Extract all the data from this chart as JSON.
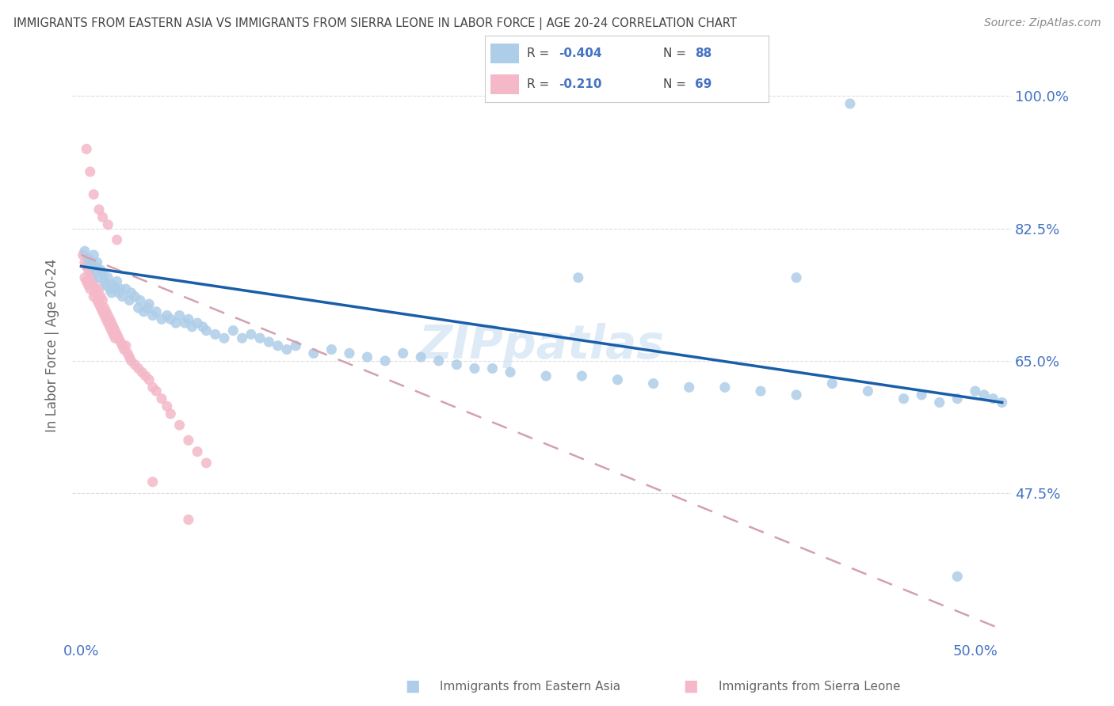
{
  "title": "IMMIGRANTS FROM EASTERN ASIA VS IMMIGRANTS FROM SIERRA LEONE IN LABOR FORCE | AGE 20-24 CORRELATION CHART",
  "source": "Source: ZipAtlas.com",
  "xlim": [
    -0.005,
    0.52
  ],
  "ylim": [
    0.28,
    1.06
  ],
  "yticks": [
    1.0,
    0.825,
    0.65,
    0.475
  ],
  "ytick_labels": [
    "100.0%",
    "82.5%",
    "65.0%",
    "47.5%"
  ],
  "xticks": [
    0.0,
    0.5
  ],
  "xtick_labels": [
    "0.0%",
    "50.0%"
  ],
  "legend_r1": "R = -0.404",
  "legend_n1": "N = 88",
  "legend_r2": "R = -0.210",
  "legend_n2": "N = 69",
  "blue_color": "#aecde8",
  "pink_color": "#f4b8c8",
  "trend_blue_color": "#1a5ea8",
  "trend_pink_color": "#d4a0b0",
  "axis_label_color": "#4472c4",
  "title_color": "#444444",
  "source_color": "#888888",
  "ylabel_color": "#666666",
  "background_color": "#ffffff",
  "grid_color": "#dddddd",
  "legend_text_color": "#4472c4",
  "watermark_color": "#c8dff0",
  "bottom_legend_color": "#666666",
  "blue_x": [
    0.002,
    0.004,
    0.005,
    0.006,
    0.007,
    0.008,
    0.008,
    0.009,
    0.01,
    0.011,
    0.012,
    0.013,
    0.014,
    0.015,
    0.016,
    0.017,
    0.018,
    0.019,
    0.02,
    0.021,
    0.022,
    0.023,
    0.025,
    0.027,
    0.028,
    0.03,
    0.032,
    0.033,
    0.035,
    0.037,
    0.038,
    0.04,
    0.042,
    0.045,
    0.048,
    0.05,
    0.053,
    0.055,
    0.058,
    0.06,
    0.062,
    0.065,
    0.068,
    0.07,
    0.075,
    0.08,
    0.085,
    0.09,
    0.095,
    0.1,
    0.105,
    0.11,
    0.115,
    0.12,
    0.13,
    0.14,
    0.15,
    0.16,
    0.17,
    0.18,
    0.19,
    0.2,
    0.21,
    0.22,
    0.23,
    0.24,
    0.26,
    0.28,
    0.3,
    0.32,
    0.34,
    0.36,
    0.38,
    0.4,
    0.42,
    0.44,
    0.46,
    0.47,
    0.48,
    0.49,
    0.5,
    0.505,
    0.51,
    0.515,
    0.278,
    0.4,
    0.43,
    0.49
  ],
  "blue_y": [
    0.795,
    0.785,
    0.78,
    0.775,
    0.79,
    0.77,
    0.775,
    0.78,
    0.76,
    0.77,
    0.765,
    0.755,
    0.75,
    0.76,
    0.745,
    0.74,
    0.75,
    0.745,
    0.755,
    0.74,
    0.745,
    0.735,
    0.745,
    0.73,
    0.74,
    0.735,
    0.72,
    0.73,
    0.715,
    0.72,
    0.725,
    0.71,
    0.715,
    0.705,
    0.71,
    0.705,
    0.7,
    0.71,
    0.7,
    0.705,
    0.695,
    0.7,
    0.695,
    0.69,
    0.685,
    0.68,
    0.69,
    0.68,
    0.685,
    0.68,
    0.675,
    0.67,
    0.665,
    0.67,
    0.66,
    0.665,
    0.66,
    0.655,
    0.65,
    0.66,
    0.655,
    0.65,
    0.645,
    0.64,
    0.64,
    0.635,
    0.63,
    0.63,
    0.625,
    0.62,
    0.615,
    0.615,
    0.61,
    0.605,
    0.62,
    0.61,
    0.6,
    0.605,
    0.595,
    0.6,
    0.61,
    0.605,
    0.6,
    0.595,
    0.76,
    0.76,
    0.99,
    0.365
  ],
  "pink_x": [
    0.001,
    0.002,
    0.002,
    0.003,
    0.003,
    0.004,
    0.004,
    0.005,
    0.005,
    0.006,
    0.006,
    0.007,
    0.007,
    0.008,
    0.008,
    0.009,
    0.009,
    0.01,
    0.01,
    0.011,
    0.011,
    0.012,
    0.012,
    0.013,
    0.013,
    0.014,
    0.014,
    0.015,
    0.015,
    0.016,
    0.016,
    0.017,
    0.017,
    0.018,
    0.018,
    0.019,
    0.019,
    0.02,
    0.021,
    0.022,
    0.023,
    0.024,
    0.025,
    0.026,
    0.027,
    0.028,
    0.03,
    0.032,
    0.034,
    0.036,
    0.038,
    0.04,
    0.042,
    0.045,
    0.048,
    0.05,
    0.055,
    0.06,
    0.065,
    0.07,
    0.003,
    0.005,
    0.007,
    0.01,
    0.012,
    0.015,
    0.02,
    0.04,
    0.06
  ],
  "pink_y": [
    0.79,
    0.78,
    0.76,
    0.775,
    0.755,
    0.77,
    0.75,
    0.765,
    0.745,
    0.76,
    0.75,
    0.755,
    0.735,
    0.745,
    0.74,
    0.74,
    0.73,
    0.745,
    0.725,
    0.735,
    0.72,
    0.73,
    0.715,
    0.72,
    0.71,
    0.715,
    0.705,
    0.71,
    0.7,
    0.705,
    0.695,
    0.7,
    0.69,
    0.695,
    0.685,
    0.69,
    0.68,
    0.685,
    0.68,
    0.675,
    0.67,
    0.665,
    0.67,
    0.66,
    0.655,
    0.65,
    0.645,
    0.64,
    0.635,
    0.63,
    0.625,
    0.615,
    0.61,
    0.6,
    0.59,
    0.58,
    0.565,
    0.545,
    0.53,
    0.515,
    0.93,
    0.9,
    0.87,
    0.85,
    0.84,
    0.83,
    0.81,
    0.49,
    0.44
  ]
}
